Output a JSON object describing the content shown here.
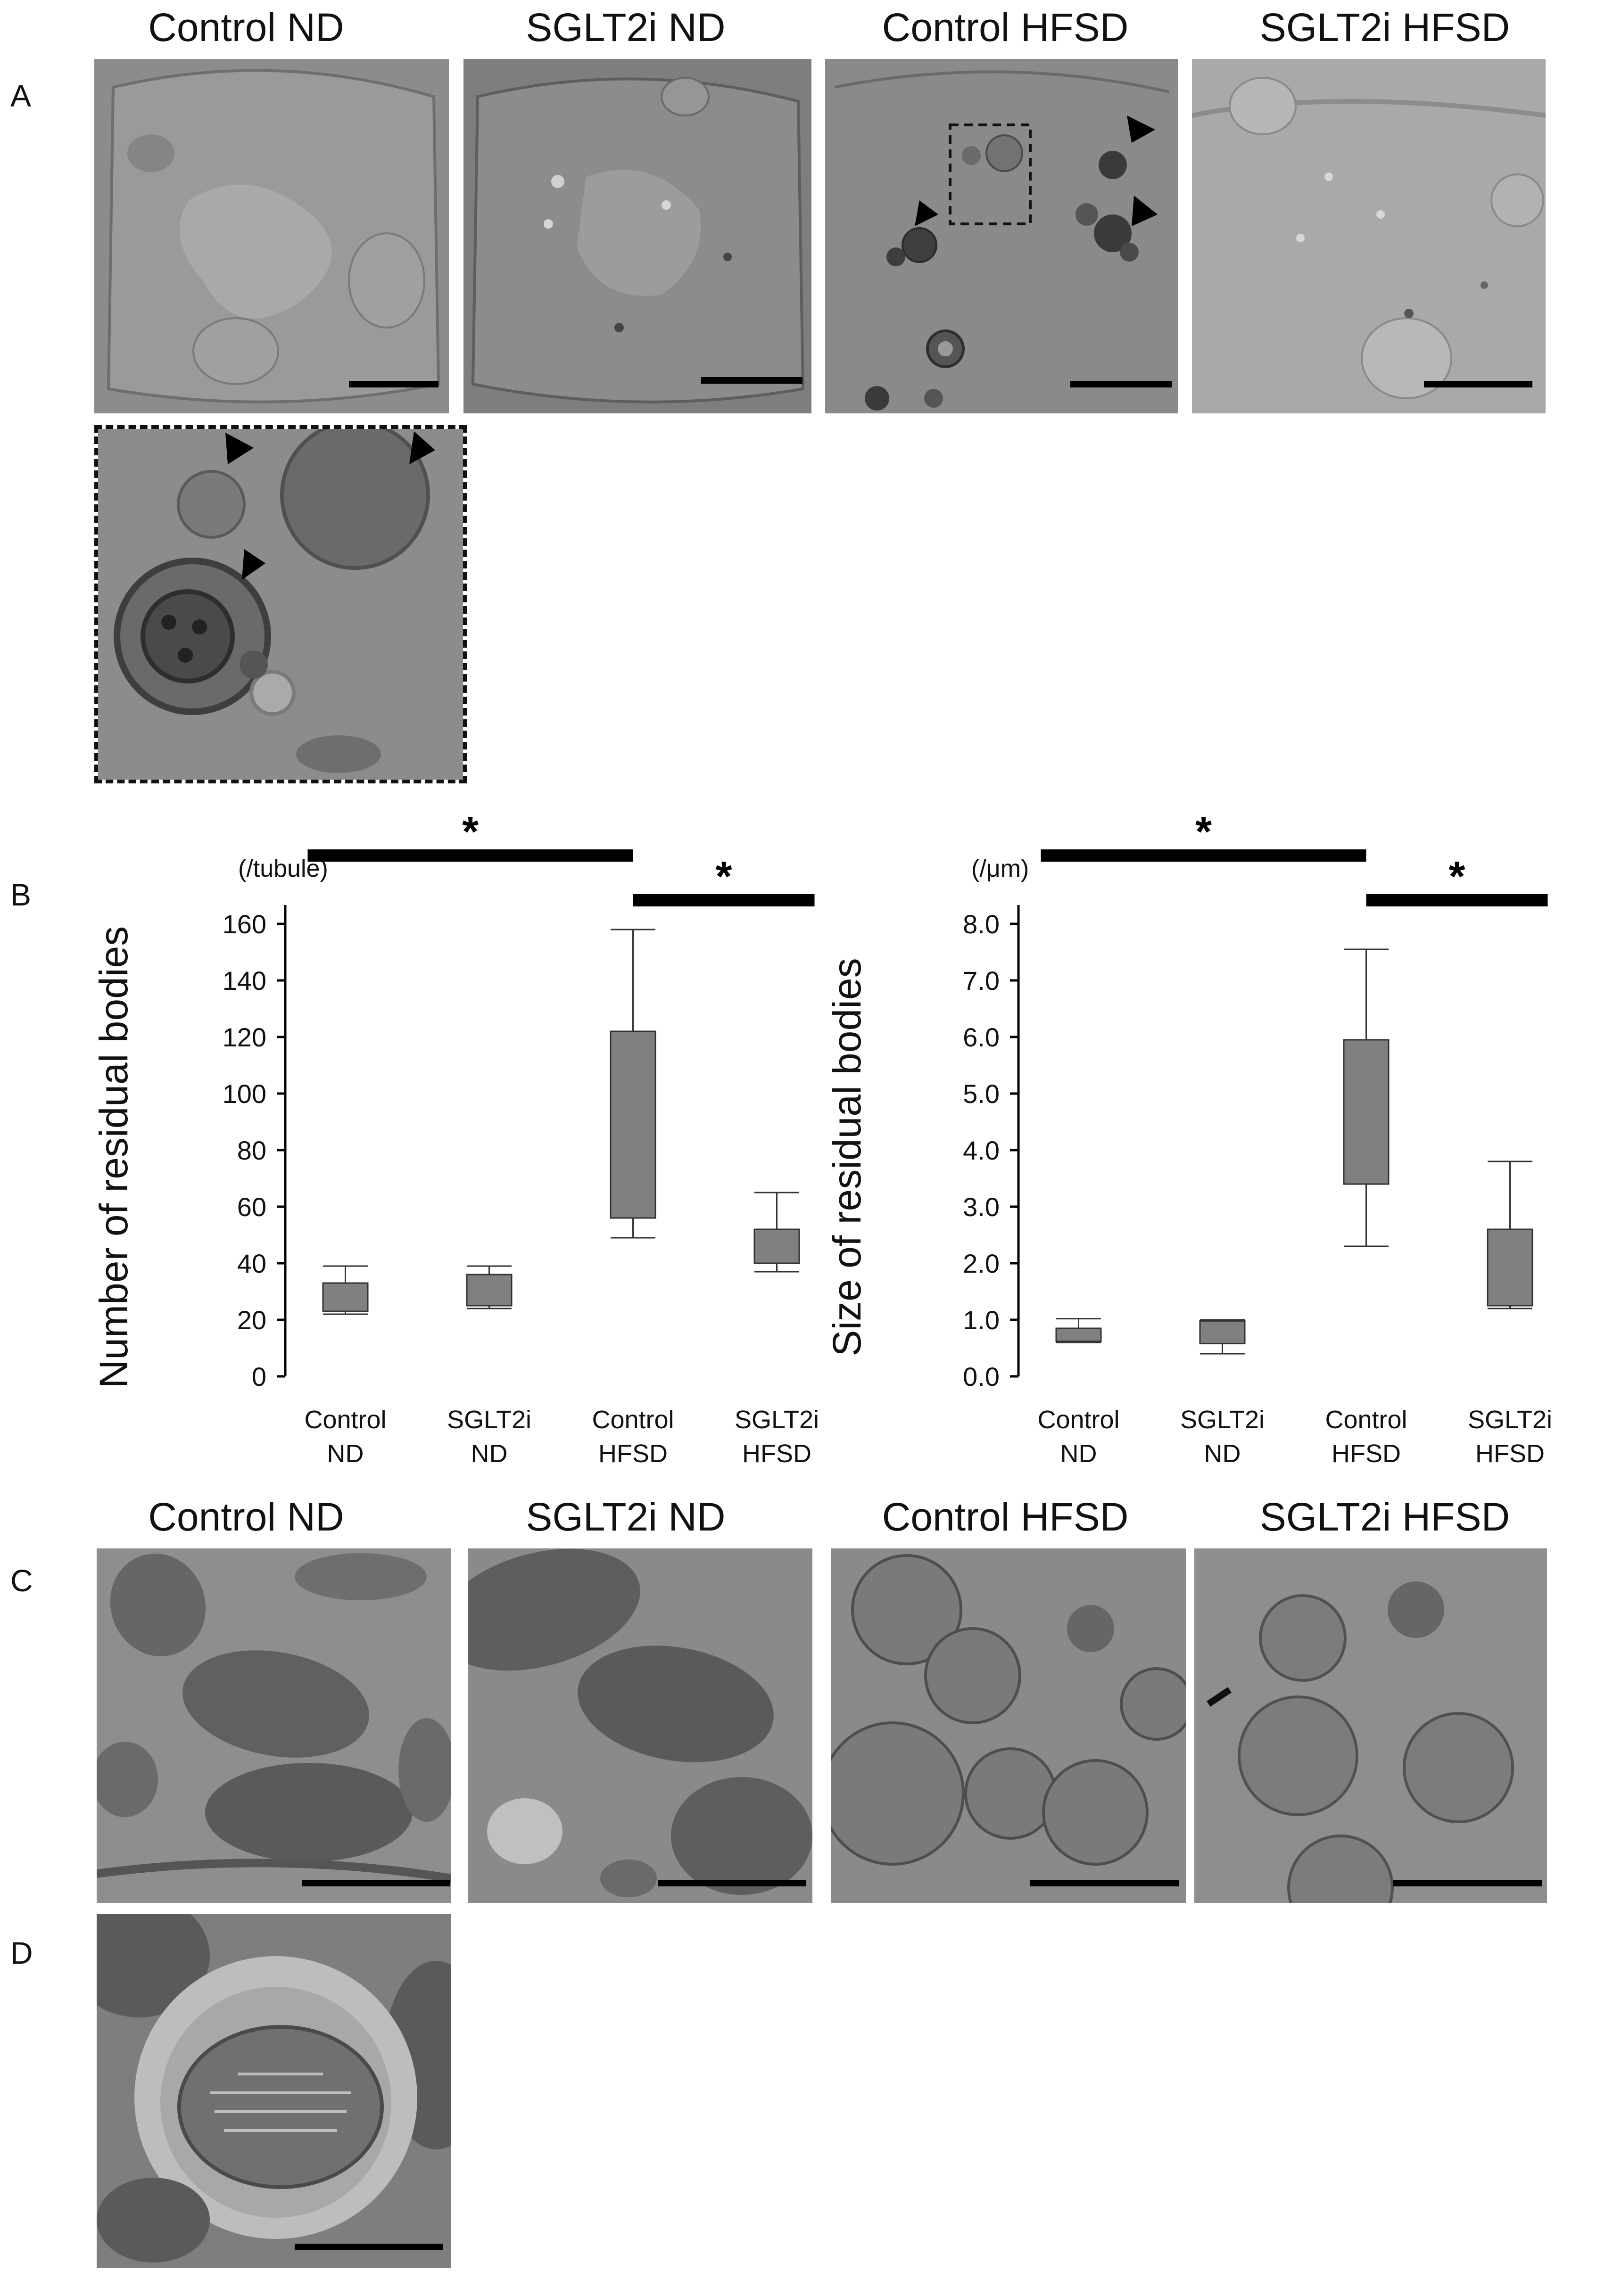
{
  "panel_letters": {
    "a": "A",
    "b": "B",
    "c": "C",
    "d": "D"
  },
  "groups": [
    "Control ND",
    "SGLT2i ND",
    "Control HFSD",
    "SGLT2i HFSD"
  ],
  "colors": {
    "box_fill": "#808080",
    "em_dark": "#5a5a5a",
    "em_mid": "#8a8a8a",
    "em_light": "#b4b4b4",
    "axis": "#000000"
  },
  "chart_data": [
    {
      "type": "box",
      "ylabel": "Number of residual bodies",
      "unit_label": "(/tubule)",
      "categories": [
        [
          "Control",
          "ND"
        ],
        [
          "SGLT2i",
          "ND"
        ],
        [
          "Control",
          "HFSD"
        ],
        [
          "SGLT2i",
          "HFSD"
        ]
      ],
      "ylim": [
        0,
        160
      ],
      "yticks": [
        "0",
        "20",
        "40",
        "60",
        "80",
        "100",
        "120",
        "140",
        "160"
      ],
      "boxes": [
        {
          "min": 22,
          "q1": 23,
          "q3": 33,
          "max": 39
        },
        {
          "min": 24,
          "q1": 25,
          "q3": 36,
          "max": 39
        },
        {
          "min": 49,
          "q1": 56,
          "q3": 122,
          "max": 158
        },
        {
          "min": 37,
          "q1": 40,
          "q3": 52,
          "max": 65
        }
      ],
      "significance": [
        {
          "from": 0,
          "to": 2,
          "label": "*"
        },
        {
          "from": 2,
          "to": 3,
          "label": "*"
        }
      ]
    },
    {
      "type": "box",
      "ylabel": "Size of residual bodies",
      "unit_label": "(/μm)",
      "categories": [
        [
          "Control",
          "ND"
        ],
        [
          "SGLT2i",
          "ND"
        ],
        [
          "Control",
          "HFSD"
        ],
        [
          "SGLT2i",
          "HFSD"
        ]
      ],
      "ylim": [
        0,
        8
      ],
      "yticks": [
        "0.0",
        "1.0",
        "2.0",
        "3.0",
        "4.0",
        "5.0",
        "6.0",
        "7.0",
        "8.0"
      ],
      "boxes": [
        {
          "min": 0.6,
          "q1": 0.62,
          "q3": 0.85,
          "max": 1.02
        },
        {
          "min": 0.4,
          "q1": 0.58,
          "q3": 0.98,
          "max": 1.0
        },
        {
          "min": 2.3,
          "q1": 3.4,
          "q3": 5.95,
          "max": 7.55
        },
        {
          "min": 1.2,
          "q1": 1.25,
          "q3": 2.6,
          "max": 3.8
        }
      ],
      "significance": [
        {
          "from": 0,
          "to": 2,
          "label": "*"
        },
        {
          "from": 2,
          "to": 3,
          "label": "*"
        }
      ]
    }
  ]
}
